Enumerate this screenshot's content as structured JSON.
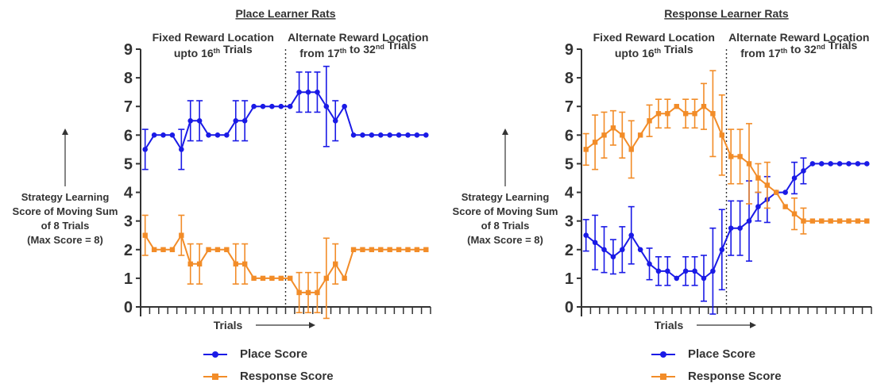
{
  "chart_data": [
    {
      "type": "line",
      "title": "Place Learner Rats",
      "left_label_lines": [
        "Strategy Learning",
        "Score of Moving Sum",
        "of 8 Trials",
        "(Max Score = 8)"
      ],
      "xlabel": "Trials",
      "ylim": [
        0,
        9
      ],
      "yticks": [
        "0",
        "1",
        "2",
        "3",
        "4",
        "5",
        "6",
        "7",
        "8",
        "9"
      ],
      "phases": [
        {
          "lines": [
            "Fixed Reward Location",
            "upto 16th Trials"
          ]
        },
        {
          "lines": [
            "Alternate Reward Location",
            "from 17th to 32nd Trials"
          ]
        }
      ],
      "x": [
        1,
        2,
        3,
        4,
        5,
        6,
        7,
        8,
        9,
        10,
        11,
        12,
        13,
        14,
        15,
        16,
        17,
        18,
        19,
        20,
        21,
        22,
        23,
        24,
        25,
        26,
        27,
        28,
        29,
        30,
        31,
        32
      ],
      "series": [
        {
          "name": "Place Score",
          "color": "#1a1ae6",
          "values": [
            5.5,
            6,
            6,
            6,
            5.5,
            6.5,
            6.5,
            6,
            6,
            6,
            6.5,
            6.5,
            7,
            7,
            7,
            7,
            7,
            7.5,
            7.5,
            7.5,
            7,
            6.5,
            7,
            6,
            6,
            6,
            6,
            6,
            6,
            6,
            6,
            6
          ],
          "errors": [
            0.7,
            0,
            0,
            0,
            0.7,
            0.7,
            0.7,
            0,
            0,
            0,
            0.7,
            0.7,
            0,
            0,
            0,
            0,
            0,
            0.7,
            0.7,
            0.7,
            1.4,
            0.7,
            0,
            0,
            0,
            0,
            0,
            0,
            0,
            0,
            0,
            0
          ]
        },
        {
          "name": "Response Score",
          "color": "#f28c28",
          "values": [
            2.5,
            2,
            2,
            2,
            2.5,
            1.5,
            1.5,
            2,
            2,
            2,
            1.5,
            1.5,
            1,
            1,
            1,
            1,
            1,
            0.5,
            0.5,
            0.5,
            1,
            1.5,
            1,
            2,
            2,
            2,
            2,
            2,
            2,
            2,
            2,
            2
          ],
          "errors": [
            0.7,
            0,
            0,
            0,
            0.7,
            0.7,
            0.7,
            0,
            0,
            0,
            0.7,
            0.7,
            0,
            0,
            0,
            0,
            0,
            0.7,
            0.7,
            0.7,
            1.4,
            0.7,
            0,
            0,
            0,
            0,
            0,
            0,
            0,
            0,
            0,
            0
          ]
        }
      ]
    },
    {
      "type": "line",
      "title": "Response Learner Rats",
      "left_label_lines": [
        "Strategy Learning",
        "Score of Moving Sum",
        "of 8 Trials",
        "(Max Score = 8)"
      ],
      "xlabel": "Trials",
      "ylim": [
        0,
        9
      ],
      "yticks": [
        "0",
        "1",
        "2",
        "3",
        "4",
        "5",
        "6",
        "7",
        "8",
        "9"
      ],
      "phases": [
        {
          "lines": [
            "Fixed Reward Location",
            "upto 16th Trials"
          ]
        },
        {
          "lines": [
            "Alternate Reward Location",
            "from 17th to 32nd Trials"
          ]
        }
      ],
      "x": [
        1,
        2,
        3,
        4,
        5,
        6,
        7,
        8,
        9,
        10,
        11,
        12,
        13,
        14,
        15,
        16,
        17,
        18,
        19,
        20,
        21,
        22,
        23,
        24,
        25,
        26,
        27,
        28,
        29,
        30,
        31,
        32
      ],
      "series": [
        {
          "name": "Place Score",
          "color": "#1a1ae6",
          "values": [
            2.5,
            2.25,
            2,
            1.75,
            2,
            2.5,
            2,
            1.5,
            1.25,
            1.25,
            1,
            1.25,
            1.25,
            1,
            1.25,
            2,
            2.75,
            2.75,
            3,
            3.5,
            3.75,
            4,
            4,
            4.5,
            4.75,
            5,
            5,
            5,
            5,
            5,
            5,
            5
          ],
          "errors": [
            0.55,
            0.95,
            0.8,
            0.6,
            0.8,
            1.0,
            0,
            0.55,
            0.5,
            0.5,
            0,
            0.5,
            0.5,
            0.8,
            1.5,
            1.4,
            0.95,
            0.95,
            1.4,
            0.5,
            0.8,
            0,
            0,
            0.55,
            0.45,
            0,
            0,
            0,
            0,
            0,
            0,
            0
          ]
        },
        {
          "name": "Response Score",
          "color": "#f28c28",
          "values": [
            5.5,
            5.75,
            6,
            6.25,
            6,
            5.5,
            6,
            6.5,
            6.75,
            6.75,
            7,
            6.75,
            6.75,
            7,
            6.75,
            6,
            5.25,
            5.25,
            5,
            4.5,
            4.25,
            4,
            3.5,
            3.25,
            3,
            3,
            3,
            3,
            3,
            3,
            3,
            3
          ],
          "errors": [
            0.55,
            0.95,
            0.8,
            0.6,
            0.8,
            1.0,
            0,
            0.55,
            0.5,
            0.5,
            0,
            0.5,
            0.5,
            0.8,
            1.5,
            1.4,
            0.95,
            0.95,
            1.4,
            0.5,
            0.8,
            0,
            0,
            0.55,
            0.45,
            0,
            0,
            0,
            0,
            0,
            0,
            0
          ]
        }
      ]
    }
  ],
  "legend": {
    "items": [
      {
        "label": "Place Score",
        "color": "#1a1ae6"
      },
      {
        "label": "Response Score",
        "color": "#f28c28"
      }
    ]
  }
}
